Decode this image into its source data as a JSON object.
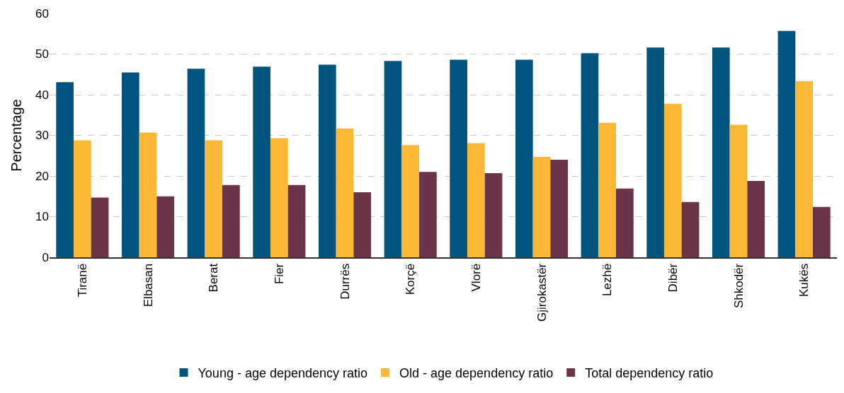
{
  "chart_data": {
    "type": "bar",
    "ylabel": "Percentage",
    "categories": [
      "Tiranë",
      "Elbasan",
      "Berat",
      "Fier",
      "Durrës",
      "Korçë",
      "Vlorë",
      "Gjirokastër",
      "Lezhë",
      "Dibër",
      "Shkodër",
      "Kukës"
    ],
    "series": [
      {
        "name": "Young - age dependency ratio",
        "color": "#00557f",
        "values": [
          43.1,
          45.5,
          46.4,
          46.9,
          47.4,
          48.3,
          48.6,
          48.6,
          50.2,
          51.6,
          51.6,
          55.7
        ]
      },
      {
        "name": "Old - age dependency ratio",
        "color": "#fbb836",
        "values": [
          28.8,
          30.7,
          28.8,
          29.3,
          31.7,
          27.6,
          28.1,
          24.7,
          33.1,
          37.8,
          32.6,
          43.3
        ]
      },
      {
        "name": "Total dependency ratio",
        "color": "#6b3448",
        "values": [
          14.7,
          15.0,
          17.8,
          17.8,
          16.0,
          21.0,
          20.7,
          24.0,
          16.9,
          13.6,
          18.8,
          12.4
        ]
      }
    ],
    "ylim": [
      0,
      60
    ],
    "yticks": [
      0,
      10,
      20,
      30,
      40,
      50,
      60
    ],
    "grid": "y",
    "legend": "bottom"
  }
}
